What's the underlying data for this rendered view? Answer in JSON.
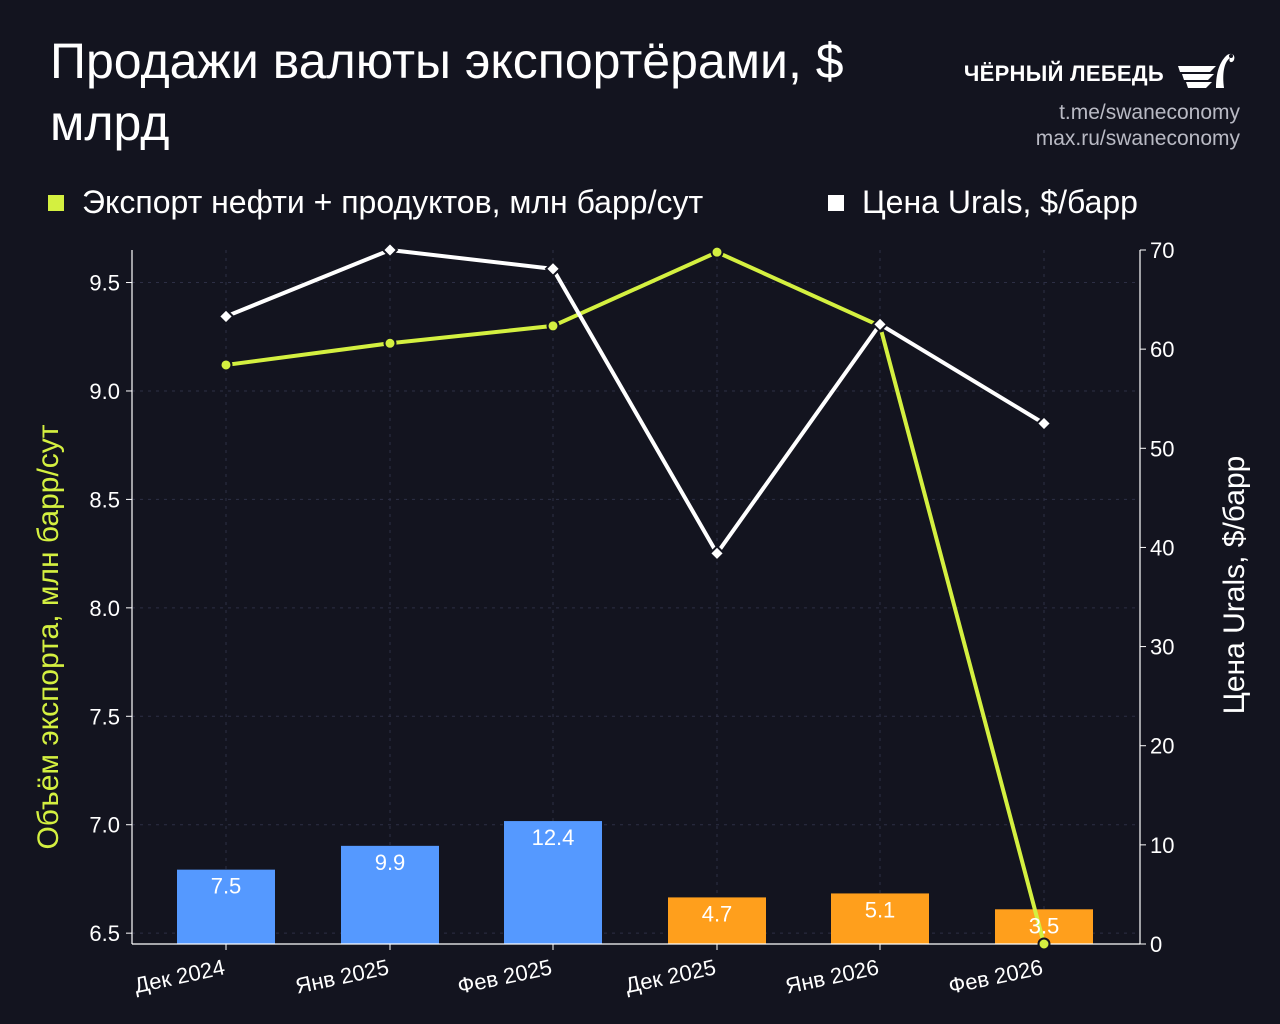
{
  "title": "Продажи валюты экспортёрами, $ млрд",
  "brand": {
    "name": "ЧЁРНЫЙ ЛЕБЕДЬ",
    "logo_icon": "swan-wings-icon",
    "links": [
      "t.me/swaneconomy",
      "max.ru/swaneconomy"
    ]
  },
  "colors": {
    "background": "#13141f",
    "export_line": "#d4f040",
    "price_line": "#ffffff",
    "bar_2025": "#5599ff",
    "bar_2026": "#ff9f1c",
    "grid": "#2d2f45"
  },
  "legend": [
    {
      "label": "Экспорт нефти + продуктов, млн барр/сут",
      "color": "#d4f040"
    },
    {
      "label": "Цена Urals, $/барр",
      "color": "#ffffff"
    }
  ],
  "chart_data": {
    "type": "bar",
    "title": "Продажи валюты экспортёрами, $ млрд",
    "categories": [
      "Дек 2024",
      "Янв 2025",
      "Фев 2025",
      "Дек 2025",
      "Янв 2026",
      "Фев 2026"
    ],
    "ylabel_left": "Объём экспорта, млн барр/сут",
    "ylabel_right": "Цена Urals, $/барр",
    "ylim_left": [
      6.45,
      9.65
    ],
    "ylim_right": [
      0,
      70
    ],
    "yticks_left": [
      "6.5",
      "7.0",
      "7.5",
      "8.0",
      "8.5",
      "9.0",
      "9.5"
    ],
    "yticks_right": [
      "0",
      "10",
      "20",
      "30",
      "40",
      "50",
      "60",
      "70"
    ],
    "grid": true,
    "bars": {
      "axis": "right",
      "values": [
        7.5,
        9.9,
        12.4,
        4.7,
        5.1,
        3.5
      ],
      "labels": [
        "7.5",
        "9.9",
        "12.4",
        "4.7",
        "5.1",
        "3.5"
      ],
      "colors": [
        "#5599ff",
        "#5599ff",
        "#5599ff",
        "#ff9f1c",
        "#ff9f1c",
        "#ff9f1c"
      ]
    },
    "series": [
      {
        "name": "Экспорт нефти + продуктов, млн барр/сут",
        "type": "line",
        "axis": "left",
        "values": [
          9.12,
          9.22,
          9.3,
          9.64,
          9.3,
          6.45
        ],
        "color": "#d4f040",
        "marker": "circle"
      },
      {
        "name": "Цена Urals, $/барр",
        "type": "line",
        "axis": "right",
        "values": [
          63.3,
          70.0,
          68.1,
          39.4,
          62.5,
          52.5
        ],
        "color": "#ffffff",
        "marker": "diamond"
      }
    ]
  }
}
